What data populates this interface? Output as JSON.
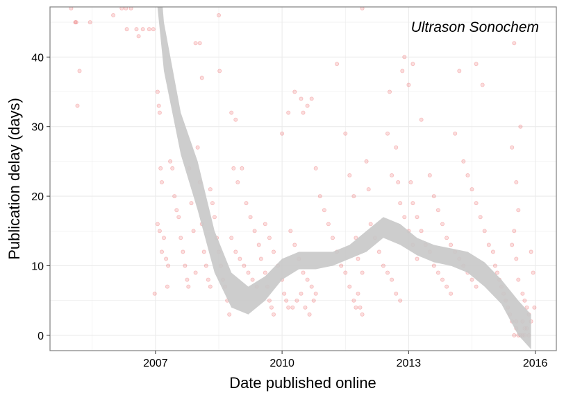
{
  "chart_data": {
    "type": "scatter",
    "annotation": "Ultrason Sonochem",
    "xlabel": "Date published online",
    "ylabel": "Publication delay (days)",
    "xlim": [
      2004.5,
      2016.5
    ],
    "ylim": [
      -2.2,
      47.2
    ],
    "x_ticks": [
      {
        "value": 2007,
        "label": "2007"
      },
      {
        "value": 2010,
        "label": "2010"
      },
      {
        "value": 2013,
        "label": "2013"
      },
      {
        "value": 2016,
        "label": "2016"
      }
    ],
    "y_ticks": [
      {
        "value": 0,
        "label": "0"
      },
      {
        "value": 10,
        "label": "10"
      },
      {
        "value": 20,
        "label": "20"
      },
      {
        "value": 30,
        "label": "30"
      },
      {
        "value": 40,
        "label": "40"
      }
    ],
    "grid": true,
    "colors": {
      "points": "#e31a1c",
      "smooth_band": "#c8c8c8",
      "grid": "#ebebeb",
      "panel_border": "#7f7f7f"
    },
    "point_opacity": 0.15,
    "points": [
      [
        2005.0,
        47
      ],
      [
        2005.1,
        45
      ],
      [
        2005.12,
        45
      ],
      [
        2005.2,
        38
      ],
      [
        2005.15,
        33
      ],
      [
        2005.45,
        45
      ],
      [
        2006.0,
        46
      ],
      [
        2006.2,
        47
      ],
      [
        2006.3,
        47
      ],
      [
        2006.32,
        44
      ],
      [
        2006.42,
        47
      ],
      [
        2006.55,
        44
      ],
      [
        2006.6,
        43
      ],
      [
        2006.7,
        44
      ],
      [
        2006.85,
        44
      ],
      [
        2006.95,
        44
      ],
      [
        2006.98,
        6
      ],
      [
        2007.05,
        35
      ],
      [
        2007.08,
        33
      ],
      [
        2007.1,
        32
      ],
      [
        2007.12,
        24
      ],
      [
        2007.15,
        22
      ],
      [
        2007.05,
        16
      ],
      [
        2007.1,
        15
      ],
      [
        2007.2,
        14
      ],
      [
        2007.15,
        12
      ],
      [
        2007.25,
        11
      ],
      [
        2007.3,
        10
      ],
      [
        2007.28,
        7
      ],
      [
        2007.35,
        25
      ],
      [
        2007.4,
        24
      ],
      [
        2007.45,
        20
      ],
      [
        2007.5,
        18
      ],
      [
        2007.55,
        17
      ],
      [
        2007.6,
        14
      ],
      [
        2007.65,
        12
      ],
      [
        2007.7,
        10
      ],
      [
        2007.75,
        8
      ],
      [
        2007.78,
        7
      ],
      [
        2007.8,
        24
      ],
      [
        2007.85,
        19
      ],
      [
        2007.9,
        15
      ],
      [
        2007.95,
        9
      ],
      [
        2008.0,
        27
      ],
      [
        2008.05,
        22
      ],
      [
        2008.1,
        16
      ],
      [
        2008.15,
        12
      ],
      [
        2008.2,
        10
      ],
      [
        2008.25,
        8
      ],
      [
        2008.3,
        7
      ],
      [
        2007.95,
        42
      ],
      [
        2008.05,
        42
      ],
      [
        2008.1,
        37
      ],
      [
        2008.3,
        21
      ],
      [
        2008.35,
        19
      ],
      [
        2008.4,
        17
      ],
      [
        2008.45,
        14
      ],
      [
        2008.5,
        12
      ],
      [
        2008.55,
        10
      ],
      [
        2008.6,
        8
      ],
      [
        2008.65,
        7
      ],
      [
        2008.7,
        5
      ],
      [
        2008.75,
        3
      ],
      [
        2008.5,
        46
      ],
      [
        2008.52,
        38
      ],
      [
        2008.8,
        32
      ],
      [
        2008.9,
        31
      ],
      [
        2008.8,
        14
      ],
      [
        2008.9,
        12
      ],
      [
        2009.0,
        11
      ],
      [
        2009.1,
        10
      ],
      [
        2009.2,
        9
      ],
      [
        2009.3,
        8
      ],
      [
        2009.4,
        7
      ],
      [
        2008.85,
        24
      ],
      [
        2008.95,
        22
      ],
      [
        2009.05,
        24
      ],
      [
        2009.15,
        19
      ],
      [
        2009.25,
        17
      ],
      [
        2009.35,
        15
      ],
      [
        2009.45,
        13
      ],
      [
        2009.5,
        11
      ],
      [
        2009.6,
        9
      ],
      [
        2009.65,
        7
      ],
      [
        2009.7,
        5
      ],
      [
        2009.75,
        4
      ],
      [
        2009.8,
        3
      ],
      [
        2009.6,
        16
      ],
      [
        2009.7,
        14
      ],
      [
        2009.8,
        12
      ],
      [
        2009.9,
        10
      ],
      [
        2010.0,
        8
      ],
      [
        2010.05,
        6
      ],
      [
        2010.1,
        5
      ],
      [
        2010.0,
        29
      ],
      [
        2010.15,
        32
      ],
      [
        2010.3,
        35
      ],
      [
        2010.45,
        34
      ],
      [
        2010.5,
        32
      ],
      [
        2010.6,
        33
      ],
      [
        2010.7,
        34
      ],
      [
        2010.2,
        15
      ],
      [
        2010.3,
        13
      ],
      [
        2010.4,
        11
      ],
      [
        2010.5,
        9
      ],
      [
        2010.6,
        8
      ],
      [
        2010.7,
        7
      ],
      [
        2010.8,
        6
      ],
      [
        2010.15,
        4
      ],
      [
        2010.25,
        4
      ],
      [
        2010.35,
        5
      ],
      [
        2010.45,
        6
      ],
      [
        2010.55,
        4
      ],
      [
        2010.65,
        3
      ],
      [
        2010.75,
        5
      ],
      [
        2010.8,
        24
      ],
      [
        2010.9,
        20
      ],
      [
        2011.0,
        18
      ],
      [
        2011.1,
        16
      ],
      [
        2011.2,
        14
      ],
      [
        2011.3,
        12
      ],
      [
        2011.4,
        10
      ],
      [
        2011.5,
        9
      ],
      [
        2011.6,
        7
      ],
      [
        2011.7,
        5
      ],
      [
        2011.75,
        4
      ],
      [
        2011.8,
        6
      ],
      [
        2011.85,
        4
      ],
      [
        2011.9,
        3
      ],
      [
        2011.3,
        39
      ],
      [
        2011.5,
        29
      ],
      [
        2011.6,
        23
      ],
      [
        2011.7,
        20
      ],
      [
        2011.75,
        14
      ],
      [
        2011.8,
        11
      ],
      [
        2011.9,
        9
      ],
      [
        2011.9,
        47
      ],
      [
        2012.0,
        25
      ],
      [
        2012.05,
        21
      ],
      [
        2012.1,
        16
      ],
      [
        2012.2,
        14
      ],
      [
        2012.3,
        12
      ],
      [
        2012.4,
        10
      ],
      [
        2012.5,
        9
      ],
      [
        2012.6,
        8
      ],
      [
        2012.7,
        6
      ],
      [
        2012.8,
        5
      ],
      [
        2012.5,
        29
      ],
      [
        2012.55,
        35
      ],
      [
        2012.6,
        23
      ],
      [
        2012.7,
        27
      ],
      [
        2012.75,
        22
      ],
      [
        2012.8,
        19
      ],
      [
        2012.9,
        17
      ],
      [
        2013.0,
        15
      ],
      [
        2013.1,
        13
      ],
      [
        2013.2,
        11
      ],
      [
        2012.85,
        38
      ],
      [
        2012.9,
        40
      ],
      [
        2013.0,
        36
      ],
      [
        2013.05,
        22
      ],
      [
        2013.1,
        19
      ],
      [
        2013.2,
        17
      ],
      [
        2013.3,
        15
      ],
      [
        2013.4,
        13
      ],
      [
        2013.5,
        12
      ],
      [
        2013.6,
        10
      ],
      [
        2013.7,
        9
      ],
      [
        2013.8,
        8
      ],
      [
        2013.9,
        7
      ],
      [
        2014.0,
        6
      ],
      [
        2013.1,
        39
      ],
      [
        2013.3,
        31
      ],
      [
        2013.5,
        23
      ],
      [
        2013.6,
        20
      ],
      [
        2013.7,
        18
      ],
      [
        2013.8,
        16
      ],
      [
        2013.9,
        14
      ],
      [
        2014.0,
        13
      ],
      [
        2014.1,
        12
      ],
      [
        2014.2,
        11
      ],
      [
        2014.3,
        10
      ],
      [
        2014.4,
        9
      ],
      [
        2014.5,
        8
      ],
      [
        2014.6,
        7
      ],
      [
        2014.1,
        29
      ],
      [
        2014.2,
        38
      ],
      [
        2014.3,
        25
      ],
      [
        2014.4,
        23
      ],
      [
        2014.5,
        21
      ],
      [
        2014.6,
        19
      ],
      [
        2014.7,
        17
      ],
      [
        2014.6,
        39
      ],
      [
        2014.75,
        36
      ],
      [
        2014.8,
        15
      ],
      [
        2014.9,
        13
      ],
      [
        2015.0,
        12
      ],
      [
        2015.05,
        10
      ],
      [
        2015.1,
        9
      ],
      [
        2015.15,
        8
      ],
      [
        2015.2,
        7
      ],
      [
        2015.25,
        6
      ],
      [
        2015.3,
        5
      ],
      [
        2015.35,
        4
      ],
      [
        2015.4,
        3
      ],
      [
        2015.45,
        2
      ],
      [
        2015.5,
        42
      ],
      [
        2015.45,
        27
      ],
      [
        2015.55,
        22
      ],
      [
        2015.6,
        18
      ],
      [
        2015.5,
        15
      ],
      [
        2015.45,
        13
      ],
      [
        2015.55,
        11
      ],
      [
        2015.65,
        30
      ],
      [
        2015.6,
        8
      ],
      [
        2015.7,
        6
      ],
      [
        2015.75,
        5
      ],
      [
        2015.8,
        4
      ],
      [
        2015.85,
        3
      ],
      [
        2015.9,
        2
      ],
      [
        2015.55,
        1
      ],
      [
        2015.6,
        0
      ],
      [
        2015.65,
        0
      ],
      [
        2015.7,
        0
      ],
      [
        2015.75,
        0
      ],
      [
        2015.8,
        1
      ],
      [
        2015.85,
        0
      ],
      [
        2015.9,
        12
      ],
      [
        2015.95,
        9
      ],
      [
        2015.98,
        4
      ],
      [
        2015.7,
        2
      ],
      [
        2015.75,
        1
      ],
      [
        2015.5,
        0
      ],
      [
        2015.55,
        2
      ]
    ],
    "smooth_band": {
      "x": [
        2005.7,
        2006.0,
        2006.4,
        2006.8,
        2007.2,
        2007.6,
        2008.0,
        2008.4,
        2008.8,
        2009.2,
        2009.6,
        2010.0,
        2010.4,
        2010.8,
        2011.2,
        2011.6,
        2012.0,
        2012.4,
        2012.8,
        2013.2,
        2013.6,
        2014.0,
        2014.4,
        2014.8,
        2015.2,
        2015.6,
        2015.9
      ],
      "upper": [
        240,
        180,
        120,
        75,
        45,
        32,
        25,
        15,
        9,
        7,
        8.5,
        11,
        12,
        12,
        12,
        13,
        15,
        17,
        16,
        14,
        13,
        12.5,
        12,
        10.5,
        8,
        5,
        3
      ],
      "lower": [
        200,
        150,
        100,
        62,
        38,
        26,
        18,
        9,
        4,
        3,
        5,
        8,
        9.5,
        9.5,
        10,
        11,
        12,
        14,
        13,
        11.5,
        10.5,
        10,
        9,
        7,
        4.5,
        0,
        -2
      ]
    }
  }
}
